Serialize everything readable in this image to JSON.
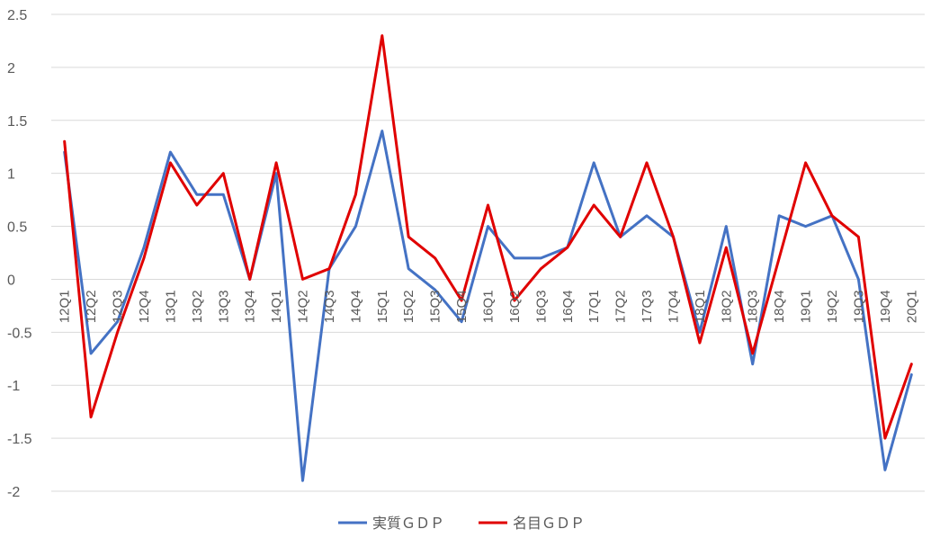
{
  "chart_data": {
    "type": "line",
    "categories": [
      "12Q1",
      "12Q2",
      "12Q3",
      "12Q4",
      "13Q1",
      "13Q2",
      "13Q3",
      "13Q4",
      "14Q1",
      "14Q2",
      "14Q3",
      "14Q4",
      "15Q1",
      "15Q2",
      "15Q3",
      "15Q4",
      "16Q1",
      "16Q2",
      "16Q3",
      "16Q4",
      "17Q1",
      "17Q2",
      "17Q3",
      "17Q4",
      "18Q1",
      "18Q2",
      "18Q3",
      "18Q4",
      "19Q1",
      "19Q2",
      "19Q3",
      "19Q4",
      "20Q1"
    ],
    "series": [
      {
        "name": "実質ＧＤＰ",
        "color": "#4472C4",
        "values": [
          1.2,
          -0.7,
          -0.4,
          0.3,
          1.2,
          0.8,
          0.8,
          0.0,
          1.0,
          -1.9,
          0.1,
          0.5,
          1.4,
          0.1,
          -0.1,
          -0.4,
          0.5,
          0.2,
          0.2,
          0.3,
          1.1,
          0.4,
          0.6,
          0.4,
          -0.5,
          0.5,
          -0.8,
          0.6,
          0.5,
          0.6,
          0.0,
          -1.8,
          -0.9
        ]
      },
      {
        "name": "名目ＧＤＰ",
        "color": "#E00000",
        "values": [
          1.3,
          -1.3,
          -0.5,
          0.2,
          1.1,
          0.7,
          1.0,
          0.0,
          1.1,
          0.0,
          0.1,
          0.8,
          2.3,
          0.4,
          0.2,
          -0.2,
          0.7,
          -0.2,
          0.1,
          0.3,
          0.7,
          0.4,
          1.1,
          0.4,
          -0.6,
          0.3,
          -0.7,
          0.2,
          1.1,
          0.6,
          0.4,
          -1.5,
          -0.8
        ]
      }
    ],
    "yticks": [
      "2.5",
      "2",
      "1.5",
      "1",
      "0.5",
      "0",
      "-0.5",
      "-1",
      "-1.5",
      "-2"
    ],
    "ylim": [
      -2,
      2.5
    ],
    "grid": true,
    "legend_position": "bottom"
  }
}
